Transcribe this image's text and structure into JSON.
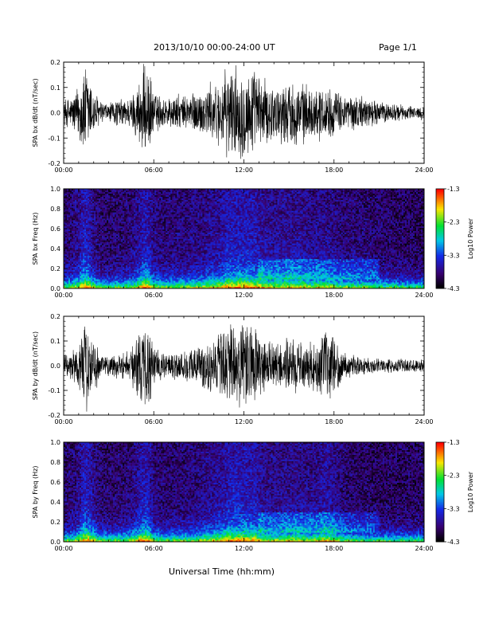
{
  "header": {
    "title": "2013/10/10   00:00-24:00 UT",
    "page": "Page 1/1"
  },
  "xaxis": {
    "title": "Universal Time (hh:mm)",
    "tick_labels": [
      "00:00",
      "06:00",
      "12:00",
      "18:00",
      "24:00"
    ]
  },
  "colorbar": {
    "label": "Log10 Power",
    "tick_labels": [
      "-1.3",
      "-2.3",
      "-3.3",
      "-4.3"
    ]
  },
  "chart_data": [
    {
      "type": "line",
      "ylabel": "SPA bx dB/dt (nT/sec)",
      "xlim": [
        0,
        24
      ],
      "ylim": [
        -0.2,
        0.2
      ],
      "y_tick_labels": [
        "0.2",
        "0.1",
        "0.0",
        "-0.1",
        "-0.2"
      ],
      "series": [
        {
          "amplitude_envelope": {
            "x": [
              0,
              0.5,
              1.0,
              1.3,
              1.6,
              2.0,
              2.5,
              3.0,
              3.5,
              4.0,
              4.5,
              5.0,
              5.3,
              5.6,
              6.0,
              6.5,
              7.0,
              7.5,
              8.0,
              8.5,
              9.0,
              9.5,
              10.0,
              10.5,
              11.0,
              11.3,
              11.7,
              12.0,
              12.3,
              12.8,
              13.3,
              14.0,
              14.5,
              15.0,
              15.5,
              16.0,
              16.5,
              17.0,
              17.5,
              18.0,
              18.5,
              19.0,
              20.0,
              21.0,
              22.0,
              23.0,
              24.0
            ],
            "y": [
              0.06,
              0.07,
              0.12,
              0.2,
              0.2,
              0.1,
              0.05,
              0.04,
              0.06,
              0.06,
              0.07,
              0.14,
              0.2,
              0.2,
              0.1,
              0.07,
              0.07,
              0.08,
              0.07,
              0.1,
              0.09,
              0.12,
              0.13,
              0.15,
              0.2,
              0.2,
              0.2,
              0.2,
              0.2,
              0.18,
              0.15,
              0.12,
              0.13,
              0.14,
              0.14,
              0.13,
              0.1,
              0.12,
              0.11,
              0.1,
              0.08,
              0.08,
              0.07,
              0.05,
              0.04,
              0.03,
              0.03
            ]
          }
        }
      ]
    },
    {
      "type": "heatmap",
      "ylabel": "SPA bx Freq (Hz)",
      "xlim": [
        0,
        24
      ],
      "ylim": [
        0.0,
        1.0
      ],
      "y_tick_labels": [
        "1.0",
        "0.8",
        "0.6",
        "0.4",
        "0.2",
        "0.0"
      ],
      "z_range": [
        -4.3,
        -1.3
      ],
      "zlabel": "Log10 Power"
    },
    {
      "type": "line",
      "ylabel": "SPA by dB/dt (nT/sec)",
      "xlim": [
        0,
        24
      ],
      "ylim": [
        -0.2,
        0.2
      ],
      "y_tick_labels": [
        "0.2",
        "0.1",
        "0.0",
        "-0.1",
        "-0.2"
      ],
      "series": [
        {
          "amplitude_envelope": {
            "x": [
              0,
              0.5,
              1.0,
              1.3,
              1.6,
              2.0,
              2.5,
              3.0,
              3.5,
              4.0,
              4.5,
              5.0,
              5.3,
              5.6,
              6.0,
              6.5,
              7.0,
              7.5,
              8.0,
              8.5,
              9.0,
              9.5,
              10.0,
              10.5,
              11.0,
              11.3,
              11.7,
              12.0,
              12.3,
              12.8,
              13.3,
              14.0,
              14.5,
              15.0,
              15.5,
              16.0,
              16.5,
              17.0,
              17.5,
              18.0,
              18.5,
              19.0,
              20.0,
              21.0,
              22.0,
              23.0,
              24.0
            ],
            "y": [
              0.05,
              0.06,
              0.1,
              0.2,
              0.2,
              0.12,
              0.05,
              0.05,
              0.06,
              0.06,
              0.08,
              0.15,
              0.2,
              0.2,
              0.09,
              0.06,
              0.06,
              0.07,
              0.07,
              0.08,
              0.09,
              0.11,
              0.13,
              0.15,
              0.19,
              0.2,
              0.2,
              0.2,
              0.2,
              0.17,
              0.12,
              0.1,
              0.11,
              0.12,
              0.12,
              0.11,
              0.1,
              0.13,
              0.16,
              0.12,
              0.07,
              0.05,
              0.04,
              0.03,
              0.03,
              0.03,
              0.03
            ]
          }
        }
      ]
    },
    {
      "type": "heatmap",
      "ylabel": "SPA by Freq (Hz)",
      "xlim": [
        0,
        24
      ],
      "ylim": [
        0.0,
        1.0
      ],
      "y_tick_labels": [
        "1.0",
        "0.8",
        "0.6",
        "0.4",
        "0.2",
        "0.0"
      ],
      "z_range": [
        -4.3,
        -1.3
      ],
      "zlabel": "Log10 Power"
    }
  ]
}
